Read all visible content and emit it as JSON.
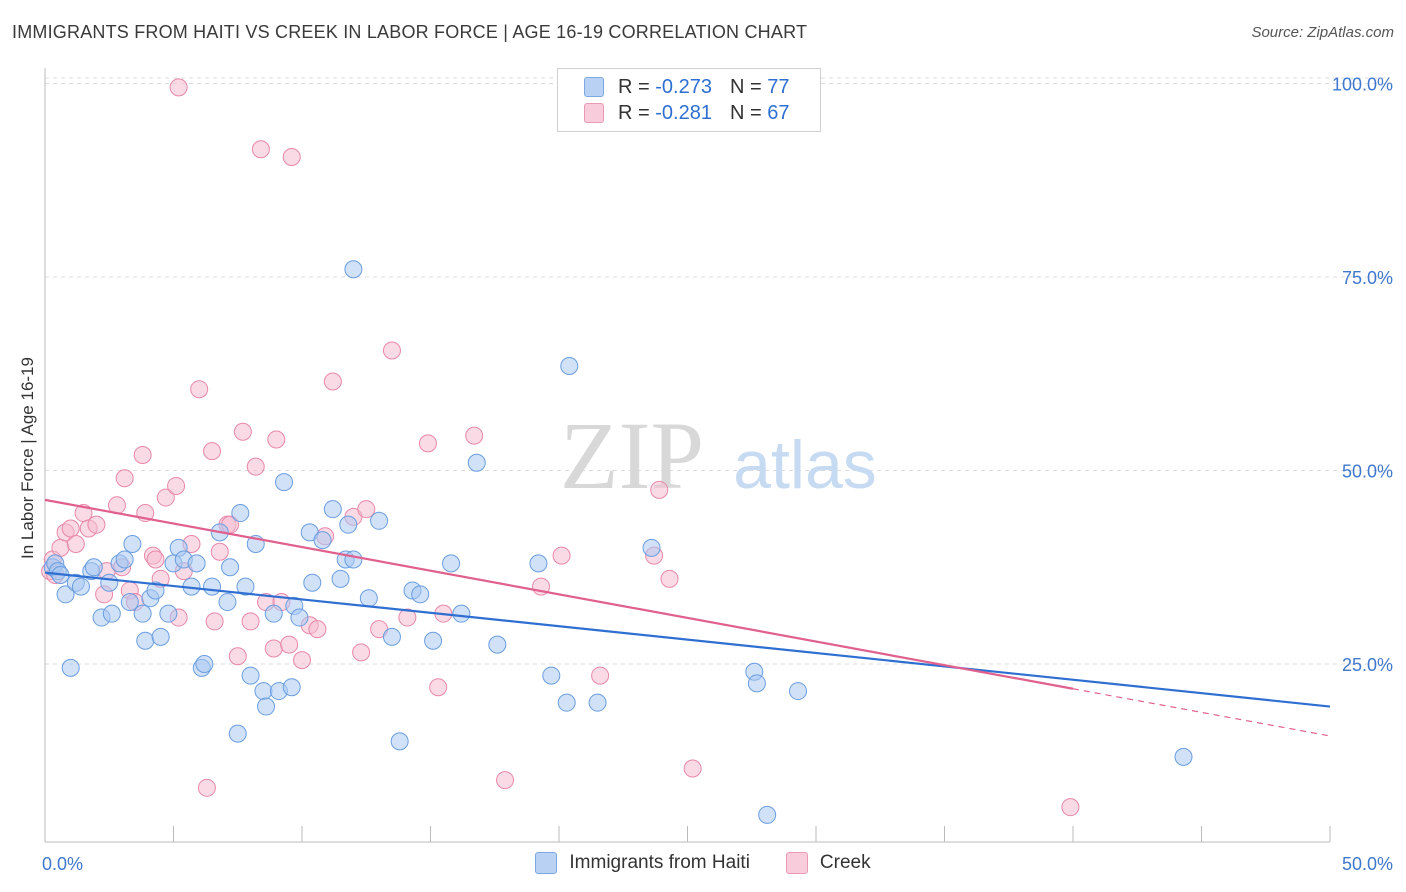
{
  "title": "IMMIGRANTS FROM HAITI VS CREEK IN LABOR FORCE | AGE 16-19 CORRELATION CHART",
  "source": "Source: ZipAtlas.com",
  "watermark": {
    "zip": "ZIP",
    "atlas": "atlas"
  },
  "legend": {
    "rows": [
      {
        "r_label": "R = ",
        "r_value": "-0.273",
        "n_label": "N = ",
        "n_value": "77"
      },
      {
        "r_label": "R = ",
        "r_value": "-0.281",
        "n_label": "N = ",
        "n_value": "67"
      }
    ]
  },
  "colors": {
    "haiti_fill": "#a9c8f2",
    "haiti_stroke": "#6a9ee0",
    "haiti_line": "#2f6fd1",
    "creek_fill": "#f6bcd0",
    "creek_stroke": "#e888aa",
    "creek_line": "#e0608e",
    "axis_text": "#3f78cc"
  },
  "chart_data": {
    "type": "scatter",
    "title": "IMMIGRANTS FROM HAITI VS CREEK IN LABOR FORCE | AGE 16-19 CORRELATION CHART",
    "xlabel": "",
    "ylabel": "In Labor Force | Age 16-19",
    "xlim": [
      0,
      50
    ],
    "ylim": [
      2,
      102
    ],
    "x_tick_labels": [
      "0.0%",
      "50.0%"
    ],
    "y_ticks": [
      25,
      50,
      75,
      100
    ],
    "y_tick_labels": [
      "25.0%",
      "50.0%",
      "75.0%",
      "100.0%"
    ],
    "grid": true,
    "legend_position": "top-center",
    "series": [
      {
        "name": "Immigrants from Haiti",
        "r": -0.273,
        "n": 77,
        "trend": {
          "x": [
            0,
            50
          ],
          "y": [
            36.8,
            19.5
          ]
        },
        "points": [
          [
            0.3,
            37.5
          ],
          [
            0.4,
            38
          ],
          [
            0.5,
            37
          ],
          [
            0.6,
            36.5
          ],
          [
            0.8,
            34
          ],
          [
            1.0,
            24.5
          ],
          [
            1.2,
            35.5
          ],
          [
            1.4,
            35
          ],
          [
            1.8,
            37
          ],
          [
            1.9,
            37.5
          ],
          [
            2.2,
            31
          ],
          [
            2.5,
            35.5
          ],
          [
            2.6,
            31.5
          ],
          [
            2.9,
            38
          ],
          [
            3.1,
            38.5
          ],
          [
            3.3,
            33
          ],
          [
            3.4,
            40.5
          ],
          [
            3.8,
            31.5
          ],
          [
            3.9,
            28
          ],
          [
            4.1,
            33.5
          ],
          [
            4.3,
            34.5
          ],
          [
            4.5,
            28.5
          ],
          [
            4.8,
            31.5
          ],
          [
            5.0,
            38
          ],
          [
            5.2,
            40
          ],
          [
            5.4,
            38.5
          ],
          [
            5.7,
            35
          ],
          [
            5.9,
            38
          ],
          [
            6.1,
            24.5
          ],
          [
            6.2,
            25
          ],
          [
            6.5,
            35
          ],
          [
            6.8,
            42
          ],
          [
            7.1,
            33
          ],
          [
            7.2,
            37.5
          ],
          [
            7.5,
            16
          ],
          [
            7.6,
            44.5
          ],
          [
            7.8,
            35
          ],
          [
            8.0,
            23.5
          ],
          [
            8.2,
            40.5
          ],
          [
            8.5,
            21.5
          ],
          [
            8.6,
            19.5
          ],
          [
            8.9,
            31.5
          ],
          [
            9.1,
            21.5
          ],
          [
            9.3,
            48.5
          ],
          [
            9.6,
            22
          ],
          [
            9.7,
            32.5
          ],
          [
            9.9,
            31
          ],
          [
            10.3,
            42
          ],
          [
            10.4,
            35.5
          ],
          [
            10.8,
            41
          ],
          [
            11.2,
            45
          ],
          [
            11.5,
            36
          ],
          [
            11.7,
            38.5
          ],
          [
            11.8,
            43
          ],
          [
            12.0,
            38.5
          ],
          [
            12.0,
            76
          ],
          [
            12.6,
            33.5
          ],
          [
            13.0,
            43.5
          ],
          [
            13.5,
            28.5
          ],
          [
            13.8,
            15
          ],
          [
            14.3,
            34.5
          ],
          [
            14.6,
            34
          ],
          [
            15.1,
            28
          ],
          [
            15.8,
            38
          ],
          [
            16.2,
            31.5
          ],
          [
            16.8,
            51
          ],
          [
            17.6,
            27.5
          ],
          [
            19.2,
            38
          ],
          [
            19.7,
            23.5
          ],
          [
            20.3,
            20
          ],
          [
            20.4,
            63.5
          ],
          [
            21.5,
            20
          ],
          [
            23.6,
            40
          ],
          [
            27.6,
            24
          ],
          [
            27.7,
            22.5
          ],
          [
            28.1,
            5.5
          ],
          [
            29.3,
            21.5
          ],
          [
            44.3,
            13
          ]
        ]
      },
      {
        "name": "Creek",
        "r": -0.281,
        "n": 67,
        "trend": {
          "x": [
            0,
            40
          ],
          "y": [
            46.2,
            21.8
          ]
        },
        "trend_dashed": {
          "x": [
            40,
            50
          ],
          "y": [
            21.8,
            15.7
          ]
        },
        "points": [
          [
            0.2,
            37
          ],
          [
            0.3,
            38.5
          ],
          [
            0.4,
            36.5
          ],
          [
            0.6,
            40
          ],
          [
            0.8,
            42
          ],
          [
            1.0,
            42.5
          ],
          [
            1.2,
            40.5
          ],
          [
            1.5,
            44.5
          ],
          [
            1.7,
            42.5
          ],
          [
            2.0,
            43
          ],
          [
            2.3,
            34
          ],
          [
            2.4,
            37
          ],
          [
            2.8,
            45.5
          ],
          [
            3.0,
            37.5
          ],
          [
            3.1,
            49
          ],
          [
            3.3,
            34.5
          ],
          [
            3.5,
            33
          ],
          [
            3.8,
            52
          ],
          [
            3.9,
            44.5
          ],
          [
            4.2,
            39
          ],
          [
            4.3,
            38.5
          ],
          [
            4.5,
            36
          ],
          [
            4.7,
            46.5
          ],
          [
            5.1,
            48
          ],
          [
            5.2,
            31
          ],
          [
            5.4,
            37
          ],
          [
            5.7,
            40.5
          ],
          [
            6.0,
            60.5
          ],
          [
            6.3,
            9
          ],
          [
            6.5,
            52.5
          ],
          [
            6.6,
            30.5
          ],
          [
            6.8,
            39.5
          ],
          [
            7.1,
            43
          ],
          [
            7.2,
            43
          ],
          [
            7.5,
            26
          ],
          [
            7.7,
            55
          ],
          [
            8.0,
            30.5
          ],
          [
            8.2,
            50.5
          ],
          [
            8.6,
            33
          ],
          [
            8.9,
            27
          ],
          [
            9.0,
            54
          ],
          [
            9.2,
            33
          ],
          [
            9.5,
            27.5
          ],
          [
            10.0,
            25.5
          ],
          [
            10.3,
            30
          ],
          [
            10.6,
            29.5
          ],
          [
            10.9,
            41.5
          ],
          [
            11.2,
            61.5
          ],
          [
            12.0,
            44
          ],
          [
            12.3,
            26.5
          ],
          [
            12.5,
            45
          ],
          [
            13.0,
            29.5
          ],
          [
            13.5,
            65.5
          ],
          [
            14.1,
            31
          ],
          [
            14.9,
            53.5
          ],
          [
            15.3,
            22
          ],
          [
            15.5,
            31.5
          ],
          [
            16.7,
            54.5
          ],
          [
            17.9,
            10
          ],
          [
            19.3,
            35
          ],
          [
            21.6,
            23.5
          ],
          [
            23.7,
            39
          ],
          [
            23.9,
            47.5
          ],
          [
            24.3,
            36
          ],
          [
            25.2,
            11.5
          ],
          [
            39.9,
            6.5
          ],
          [
            5.2,
            99.5
          ]
        ]
      }
    ]
  },
  "extra_creek_points": [
    [
      8.4,
      91.5
    ],
    [
      9.6,
      90.5
    ],
    [
      20.1,
      39
    ]
  ],
  "bottom_legend": [
    "Immigrants from Haiti",
    "Creek"
  ]
}
